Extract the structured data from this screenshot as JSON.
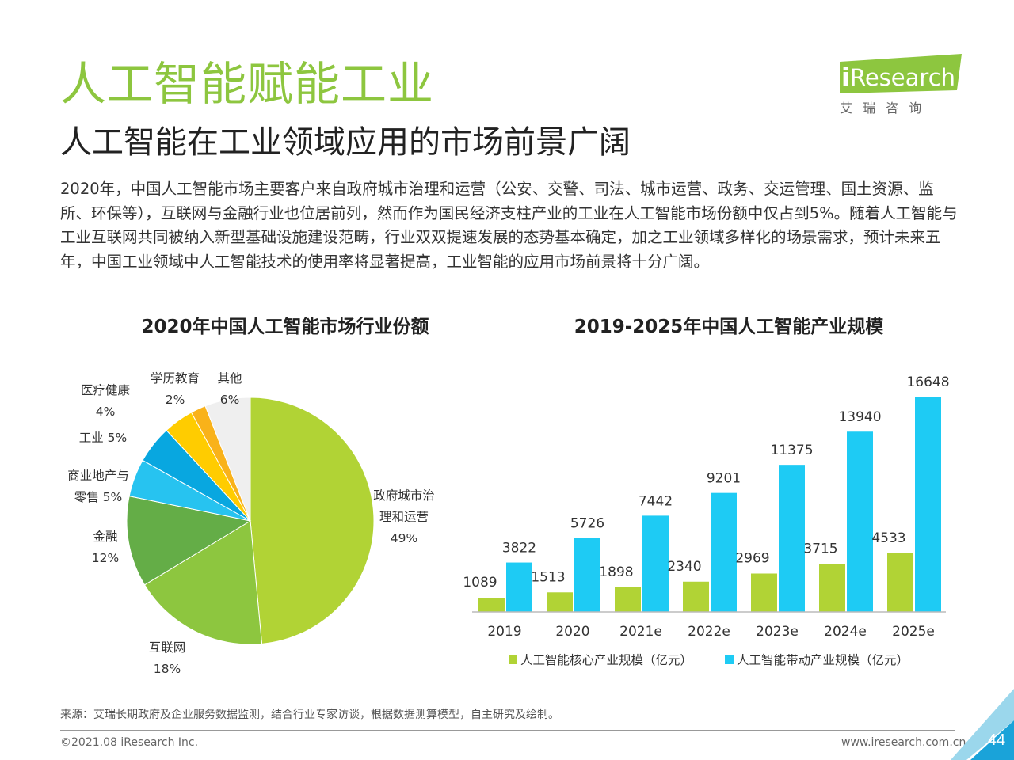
{
  "header": {
    "title": "人工智能赋能工业",
    "subtitle": "人工智能在工业领域应用的市场前景广阔"
  },
  "logo": {
    "brand_i": "i",
    "brand_rest": "Research",
    "tagline": "艾 瑞 咨 询",
    "color": "#8dc63f"
  },
  "intro": "2020年，中国人工智能市场主要客户来自政府城市治理和运营（公安、交警、司法、城市运营、政务、交运管理、国土资源、监所、环保等），互联网与金融行业也位居前列，然而作为国民经济支柱产业的工业在人工智能市场份额中仅占到5%。随着人工智能与工业互联网共同被纳入新型基础设施建设范畴，行业双双提速发展的态势基本确定，加之工业领域多样化的场景需求，预计未来五年，中国工业领域中人工智能技术的使用率将显著提高，工业智能的应用市场前景将十分广阔。",
  "chart_data": [
    {
      "type": "pie",
      "title": "2020年中国人工智能市场行业份额",
      "slices": [
        {
          "label": "政府城市治理和运营",
          "value": 49,
          "value_label": "49%",
          "color": "#b1d335"
        },
        {
          "label": "互联网",
          "value": 18,
          "value_label": "18%",
          "color": "#8dc63f"
        },
        {
          "label": "金融",
          "value": 12,
          "value_label": "12%",
          "color": "#64ad47"
        },
        {
          "label": "商业地产与零售",
          "value": 5,
          "value_label": "5%",
          "color": "#27c3f0"
        },
        {
          "label": "工业",
          "value": 5,
          "value_label": "5%",
          "color": "#08a7e0"
        },
        {
          "label": "医疗健康",
          "value": 4,
          "value_label": "4%",
          "color": "#ffcc00"
        },
        {
          "label": "学历教育",
          "value": 2,
          "value_label": "2%",
          "color": "#f9b21a"
        },
        {
          "label": "其他",
          "value": 6,
          "value_label": "6%",
          "color": "#efefef"
        }
      ],
      "label_lines": {
        "gov_1": "政府城市治",
        "gov_2": "理和运营",
        "gov_3": "49%",
        "internet_1": "互联网",
        "internet_2": "18%",
        "finance_1": "金融",
        "finance_2": "12%",
        "retail_1": "商业地产与",
        "retail_2": "零售 5%",
        "industry_1": "工业 5%",
        "health_1": "医疗健康",
        "health_2": "4%",
        "edu_1": "学历教育",
        "edu_2": "2%",
        "other_1": "其他",
        "other_2": "6%"
      }
    },
    {
      "type": "bar",
      "title": "2019-2025年中国人工智能产业规模",
      "categories": [
        "2019",
        "2020",
        "2021e",
        "2022e",
        "2023e",
        "2024e",
        "2025e"
      ],
      "series": [
        {
          "name": "人工智能核心产业规模（亿元）",
          "values": [
            1089,
            1513,
            1898,
            2340,
            2969,
            3715,
            4533
          ],
          "color": "#b1d335"
        },
        {
          "name": "人工智能带动产业规模（亿元）",
          "values": [
            3822,
            5726,
            7442,
            9201,
            11375,
            13940,
            16648
          ],
          "color": "#1ecbf4"
        }
      ],
      "ylim": [
        0,
        16648
      ],
      "grid": false,
      "legend": "bottom"
    }
  ],
  "footer": {
    "source": "来源：艾瑞长期政府及企业服务数据监测，结合行业专家访谈，根据数据测算模型，自主研究及绘制。",
    "copyright": "©2021.08 iResearch Inc.",
    "website": "www.iresearch.com.cn",
    "page": "44"
  }
}
